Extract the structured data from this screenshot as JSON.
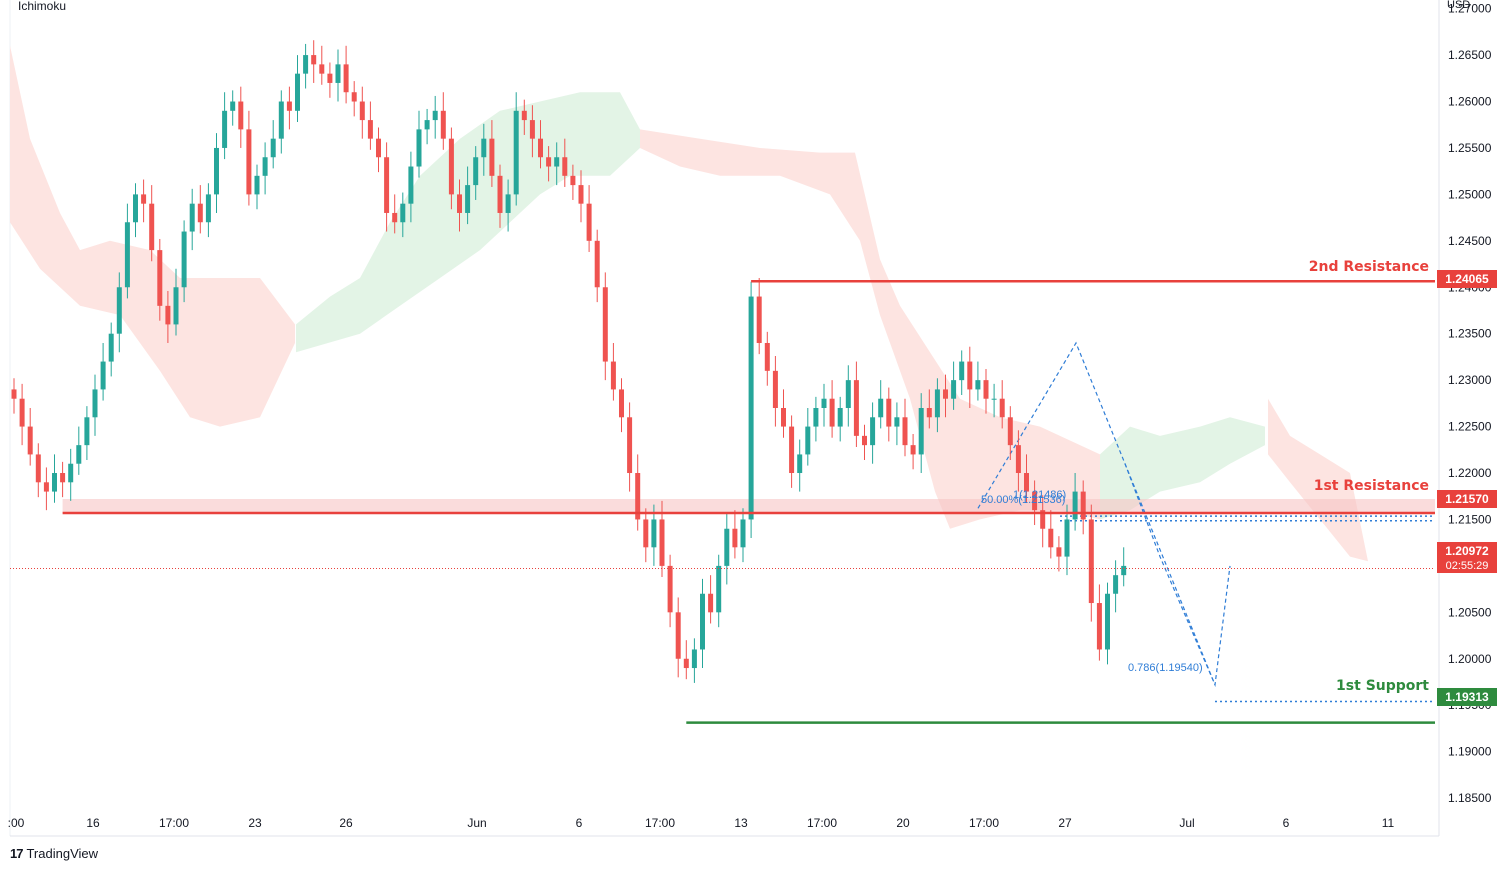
{
  "header": {
    "indicator": "Ichimoku",
    "currency": "USD"
  },
  "footer": {
    "brand_logo": "17",
    "brand": "TradingView"
  },
  "chart_data": {
    "type": "candlestick",
    "y_ticks": [
      "1.27000",
      "1.26500",
      "1.26000",
      "1.25500",
      "1.25000",
      "1.24500",
      "1.24000",
      "1.23500",
      "1.23000",
      "1.22500",
      "1.22000",
      "1.21500",
      "1.21000",
      "1.20500",
      "1.20000",
      "1.19500",
      "1.19000",
      "1.18500"
    ],
    "ylim": [
      1.1835,
      1.2705
    ],
    "x_ticks": [
      ":00",
      "16",
      "17:00",
      "23",
      "26",
      "Jun",
      "6",
      "17:00",
      "13",
      "17:00",
      "20",
      "17:00",
      "27",
      "Jul",
      "6",
      "11"
    ],
    "levels": [
      {
        "name": "2nd Resistance",
        "value": 1.24065,
        "label": "1.24065",
        "color": "#e8413c",
        "from_index": 91
      },
      {
        "name": "1st Resistance",
        "value": 1.2157,
        "label": "1.21570",
        "color": "#e8413c",
        "from_index": 6,
        "zone": [
          1.2157,
          1.2172
        ]
      },
      {
        "name": "1st Support",
        "value": 1.19313,
        "label": "1.19313",
        "color": "#2e8b3e",
        "from_index": 83
      }
    ],
    "current_price": {
      "value": 1.20972,
      "label": "1.20972",
      "countdown": "02:55:29",
      "color": "#e8413c"
    },
    "fib_labels": [
      {
        "text": "50.00%(1.21536)",
        "value": 1.21536
      },
      {
        "text": "1(1.21486)",
        "value": 1.21486
      },
      {
        "text": "0.786(1.19540)",
        "value": 1.1954
      }
    ],
    "colors": {
      "up": "#26a69a",
      "down": "#ef5350",
      "kumo_bear": "#fde4e1",
      "kumo_bull": "#e3f4e6",
      "fib": "#2f7dd6"
    },
    "closes": [
      1.228,
      1.225,
      1.222,
      1.219,
      1.218,
      1.22,
      1.219,
      1.221,
      1.223,
      1.226,
      1.229,
      1.232,
      1.235,
      1.24,
      1.247,
      1.25,
      1.249,
      1.244,
      1.238,
      1.236,
      1.24,
      1.246,
      1.249,
      1.247,
      1.25,
      1.255,
      1.259,
      1.26,
      1.257,
      1.25,
      1.252,
      1.254,
      1.256,
      1.26,
      1.259,
      1.263,
      1.265,
      1.264,
      1.263,
      1.262,
      1.264,
      1.261,
      1.26,
      1.258,
      1.256,
      1.254,
      1.248,
      1.247,
      1.249,
      1.253,
      1.257,
      1.258,
      1.259,
      1.256,
      1.25,
      1.248,
      1.251,
      1.254,
      1.256,
      1.252,
      1.248,
      1.25,
      1.259,
      1.258,
      1.256,
      1.254,
      1.253,
      1.254,
      1.252,
      1.251,
      1.249,
      1.245,
      1.24,
      1.232,
      1.229,
      1.226,
      1.22,
      1.215,
      1.212,
      1.215,
      1.21,
      1.205,
      1.2,
      1.199,
      1.201,
      1.207,
      1.205,
      1.21,
      1.214,
      1.212,
      1.215,
      1.239,
      1.234,
      1.231,
      1.227,
      1.225,
      1.22,
      1.222,
      1.225,
      1.227,
      1.228,
      1.225,
      1.227,
      1.23,
      1.224,
      1.223,
      1.226,
      1.228,
      1.225,
      1.226,
      1.223,
      1.222,
      1.227,
      1.226,
      1.229,
      1.228,
      1.23,
      1.232,
      1.229,
      1.23,
      1.228,
      1.228,
      1.226,
      1.223,
      1.22,
      1.218,
      1.216,
      1.214,
      1.212,
      1.211,
      1.215,
      1.218,
      1.215,
      1.206,
      1.201,
      1.207,
      1.209,
      1.21
    ]
  }
}
